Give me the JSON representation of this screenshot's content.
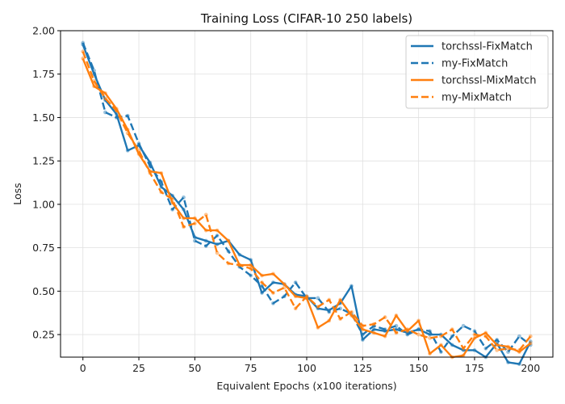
{
  "chart_data": {
    "type": "line",
    "title": "Training Loss (CIFAR-10 250 labels)",
    "xlabel": "Equivalent Epochs (x100 iterations)",
    "ylabel": "Loss",
    "xlim": [
      -10,
      210
    ],
    "ylim": [
      0.12,
      2.0
    ],
    "xticks": [
      0,
      25,
      50,
      75,
      100,
      125,
      150,
      175,
      200
    ],
    "yticks": [
      0.25,
      0.5,
      0.75,
      1.0,
      1.25,
      1.5,
      1.75,
      2.0
    ],
    "ytick_labels": [
      "0.25",
      "0.50",
      "0.75",
      "1.00",
      "1.25",
      "1.50",
      "1.75",
      "2.00"
    ],
    "grid": true,
    "legend_position": "top-right",
    "series": [
      {
        "name": "torchssl-FixMatch",
        "color": "#1f77b4",
        "style": "solid",
        "x": [
          0,
          5,
          10,
          15,
          20,
          25,
          30,
          35,
          40,
          45,
          50,
          55,
          60,
          65,
          70,
          75,
          80,
          85,
          90,
          95,
          100,
          105,
          110,
          115,
          120,
          125,
          130,
          135,
          140,
          145,
          150,
          155,
          160,
          165,
          170,
          175,
          180,
          185,
          190,
          195,
          200
        ],
        "values": [
          1.92,
          1.75,
          1.6,
          1.52,
          1.31,
          1.34,
          1.24,
          1.1,
          1.05,
          0.97,
          0.81,
          0.79,
          0.77,
          0.79,
          0.71,
          0.68,
          0.49,
          0.55,
          0.54,
          0.48,
          0.47,
          0.4,
          0.39,
          0.43,
          0.53,
          0.22,
          0.28,
          0.27,
          0.28,
          0.26,
          0.28,
          0.25,
          0.25,
          0.19,
          0.16,
          0.16,
          0.12,
          0.2,
          0.09,
          0.08,
          0.21
        ]
      },
      {
        "name": "my-FixMatch",
        "color": "#1f77b4",
        "style": "dashed",
        "x": [
          0,
          5,
          10,
          15,
          20,
          25,
          30,
          35,
          40,
          45,
          50,
          55,
          60,
          65,
          70,
          75,
          80,
          85,
          90,
          95,
          100,
          105,
          110,
          115,
          120,
          125,
          130,
          135,
          140,
          145,
          150,
          155,
          160,
          165,
          170,
          175,
          180,
          185,
          190,
          195,
          200
        ],
        "values": [
          1.93,
          1.77,
          1.53,
          1.5,
          1.51,
          1.35,
          1.22,
          1.13,
          0.97,
          1.04,
          0.79,
          0.76,
          0.82,
          0.73,
          0.64,
          0.59,
          0.53,
          0.43,
          0.47,
          0.55,
          0.46,
          0.46,
          0.38,
          0.4,
          0.37,
          0.25,
          0.3,
          0.28,
          0.3,
          0.25,
          0.28,
          0.27,
          0.15,
          0.24,
          0.3,
          0.27,
          0.17,
          0.22,
          0.15,
          0.24,
          0.19
        ]
      },
      {
        "name": "torchssl-MixMatch",
        "color": "#ff7f0e",
        "style": "solid",
        "x": [
          0,
          5,
          10,
          15,
          20,
          25,
          30,
          35,
          40,
          45,
          50,
          55,
          60,
          65,
          70,
          75,
          80,
          85,
          90,
          95,
          100,
          105,
          110,
          115,
          120,
          125,
          130,
          135,
          140,
          145,
          150,
          155,
          160,
          165,
          170,
          175,
          180,
          185,
          190,
          195,
          200
        ],
        "values": [
          1.84,
          1.68,
          1.64,
          1.55,
          1.43,
          1.29,
          1.19,
          1.18,
          1.01,
          0.92,
          0.92,
          0.85,
          0.85,
          0.79,
          0.65,
          0.65,
          0.59,
          0.6,
          0.54,
          0.47,
          0.46,
          0.29,
          0.33,
          0.45,
          0.36,
          0.28,
          0.26,
          0.24,
          0.36,
          0.27,
          0.33,
          0.14,
          0.19,
          0.12,
          0.13,
          0.23,
          0.26,
          0.19,
          0.18,
          0.15,
          0.2
        ]
      },
      {
        "name": "my-MixMatch",
        "color": "#ff7f0e",
        "style": "dashed",
        "x": [
          0,
          5,
          10,
          15,
          20,
          25,
          30,
          35,
          40,
          45,
          50,
          55,
          60,
          65,
          70,
          75,
          80,
          85,
          90,
          95,
          100,
          105,
          110,
          115,
          120,
          125,
          130,
          135,
          140,
          145,
          150,
          155,
          160,
          165,
          170,
          175,
          180,
          185,
          190,
          195,
          200
        ],
        "values": [
          1.88,
          1.71,
          1.61,
          1.54,
          1.41,
          1.31,
          1.18,
          1.07,
          1.03,
          0.87,
          0.89,
          0.94,
          0.72,
          0.66,
          0.65,
          0.63,
          0.55,
          0.49,
          0.52,
          0.4,
          0.47,
          0.41,
          0.45,
          0.34,
          0.38,
          0.3,
          0.31,
          0.35,
          0.26,
          0.28,
          0.25,
          0.23,
          0.24,
          0.28,
          0.17,
          0.25,
          0.24,
          0.16,
          0.17,
          0.16,
          0.24
        ]
      }
    ]
  }
}
